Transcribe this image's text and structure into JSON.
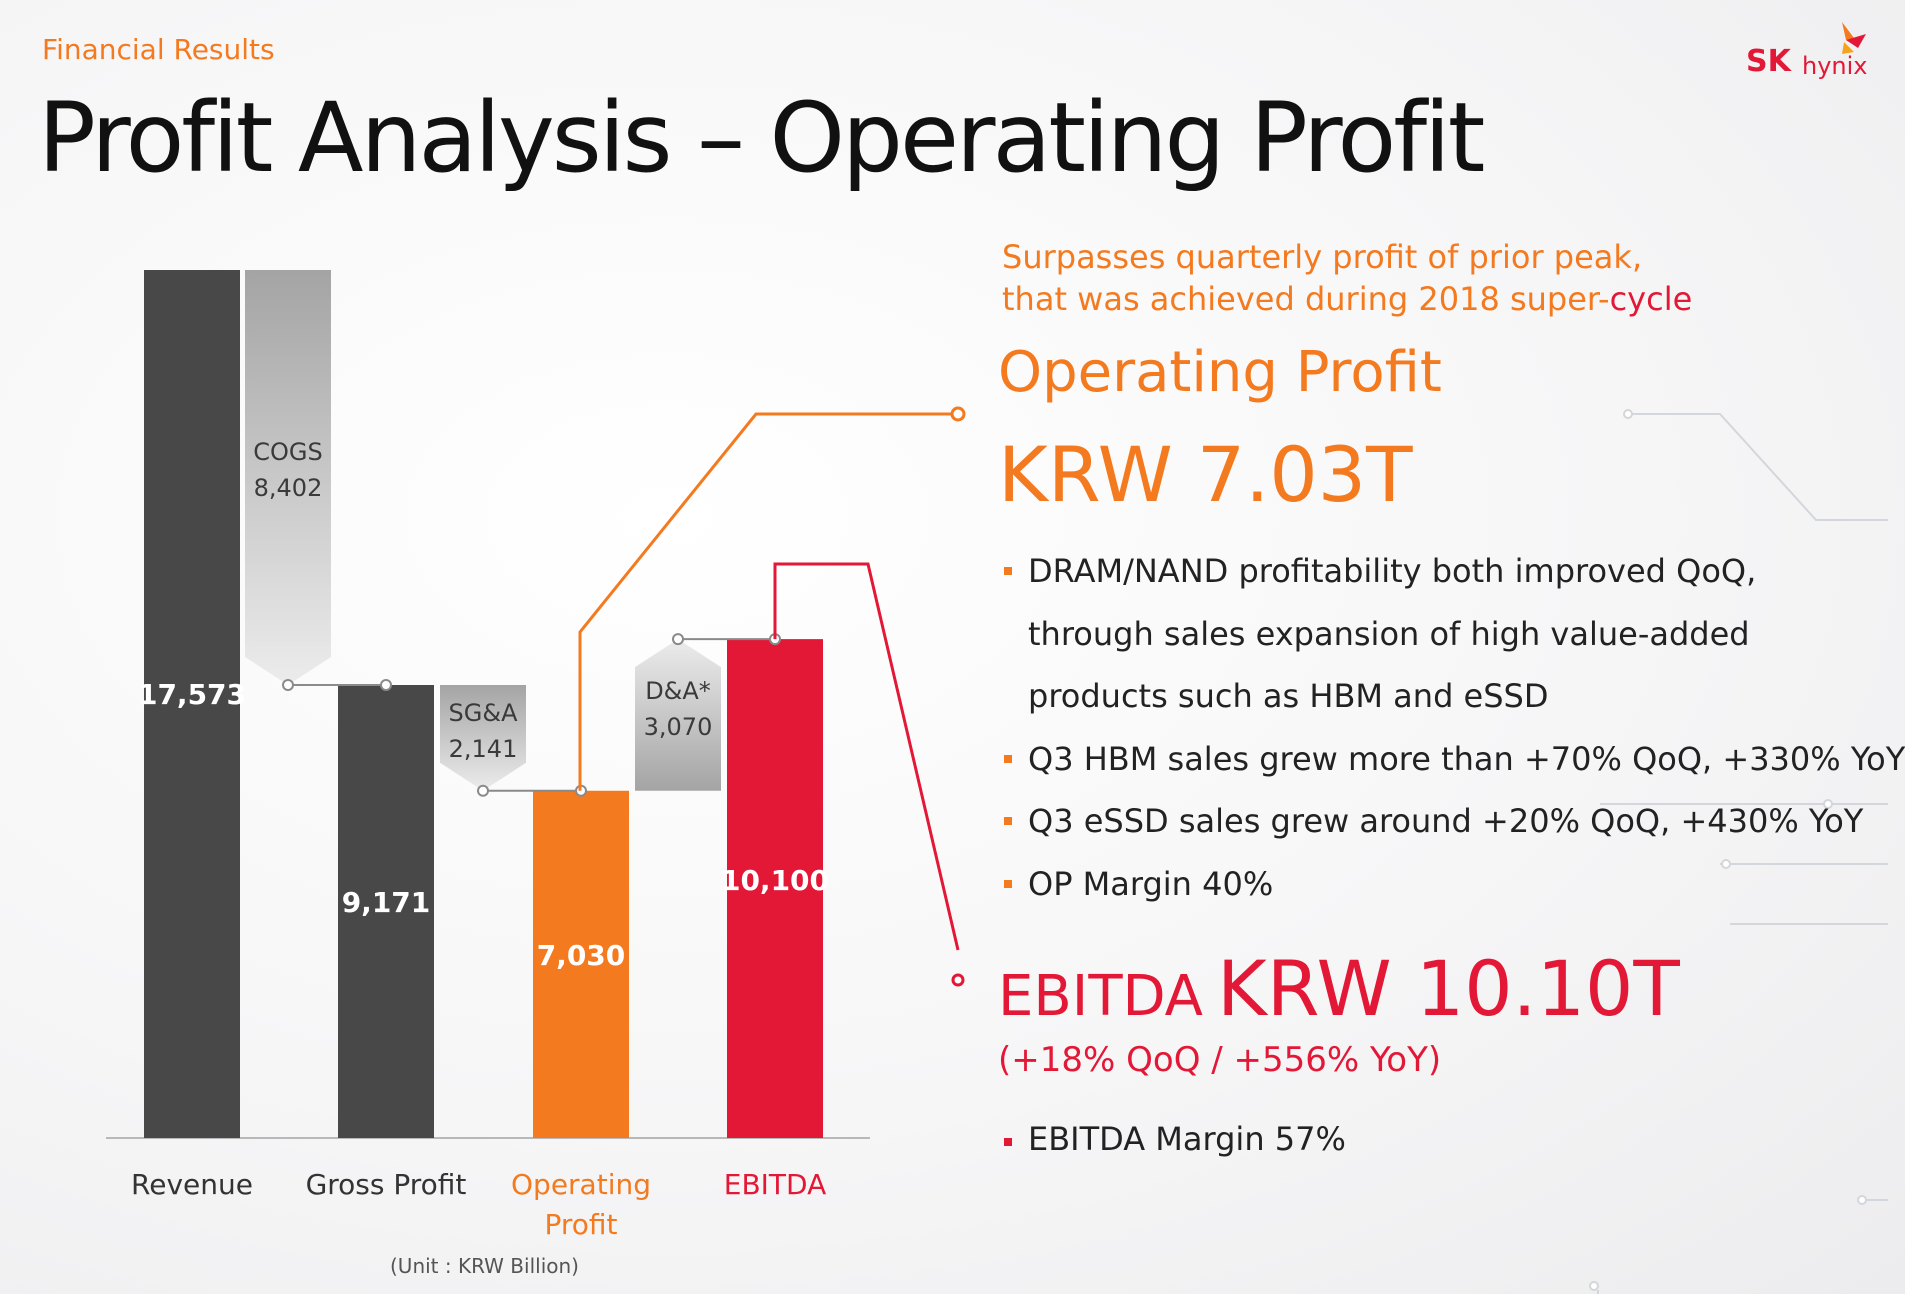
{
  "section_label": "Financial Results",
  "title": "Profit Analysis – Operating Profit",
  "logo": {
    "brand": "SK",
    "name": "hynix"
  },
  "colors": {
    "orange": "#f47a20",
    "red": "#e31837",
    "dark": "#484848",
    "gray": "#a6a6a6"
  },
  "headline": {
    "line1": "Surpasses quarterly profit of prior peak,",
    "line2_start": "that was achieved during 2018 super-",
    "line2_end": "cycle"
  },
  "operating_profit": {
    "label": "Operating Profit",
    "value": "KRW 7.03T",
    "bullets": [
      "DRAM/NAND profitability both improved QoQ,",
      "through sales expansion of high value-added",
      "products such as HBM and eSSD",
      "Q3 HBM sales grew more than +70% QoQ, +330% YoY",
      "Q3 eSSD sales grew around +20% QoQ, +430% YoY",
      "OP Margin 40%"
    ]
  },
  "ebitda": {
    "label": "EBITDA",
    "value": "KRW 10.10T",
    "growth": "(+18% QoQ / +556% YoY)",
    "margin": "EBITDA Margin 57%"
  },
  "chart_data": {
    "type": "waterfall",
    "unit_label": "(Unit : KRW Billion)",
    "categories": [
      {
        "name": "Revenue",
        "line1": "Revenue",
        "line2": "",
        "value": 17573,
        "label": "17,573",
        "color": "dark",
        "label_color": "dark"
      },
      {
        "name": "Gross Profit",
        "line1": "Gross Profit",
        "line2": "",
        "value": 9171,
        "label": "9,171",
        "color": "dark",
        "label_color": "dark"
      },
      {
        "name": "Operating Profit",
        "line1": "Operating",
        "line2": "Profit",
        "value": 7030,
        "label": "7,030",
        "color": "orange",
        "label_color": "orange"
      },
      {
        "name": "EBITDA",
        "line1": "EBITDA",
        "line2": "",
        "value": 10100,
        "label": "10,100",
        "color": "red",
        "label_color": "red"
      }
    ],
    "steps": [
      {
        "name": "COGS",
        "value": 8402,
        "label": "8,402",
        "direction": "down",
        "from": 17573,
        "to": 9171
      },
      {
        "name": "SG&A",
        "value": 2141,
        "label": "2,141",
        "direction": "down",
        "from": 9171,
        "to": 7030
      },
      {
        "name": "D&A*",
        "value": 3070,
        "label": "3,070",
        "direction": "up",
        "from": 7030,
        "to": 10100
      }
    ],
    "ylim": [
      0,
      17573
    ]
  }
}
